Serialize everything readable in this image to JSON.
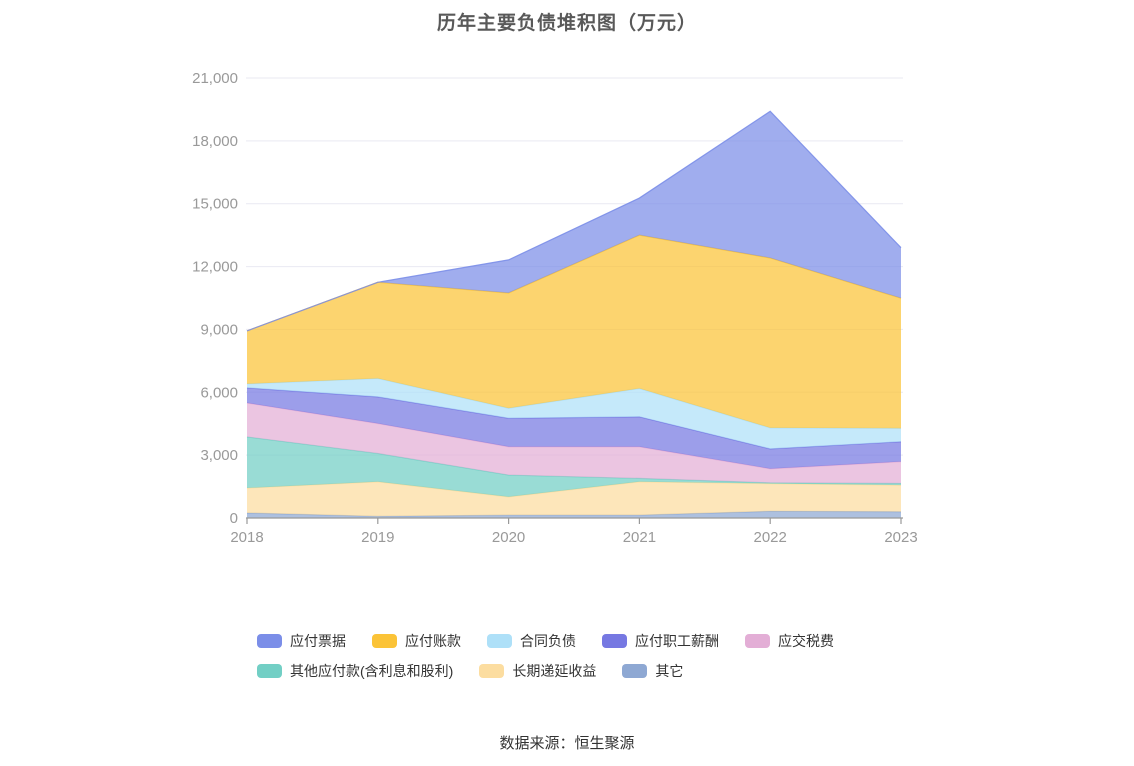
{
  "chart_data": {
    "type": "area",
    "title": "历年主要负债堆积图（万元）",
    "x": [
      "2018",
      "2019",
      "2020",
      "2021",
      "2022",
      "2023"
    ],
    "ylim": [
      0,
      21000
    ],
    "ytick_values": [
      0,
      3000,
      6000,
      9000,
      12000,
      15000,
      18000,
      21000
    ],
    "ytick_labels": [
      "0",
      "3,000",
      "6,000",
      "9,000",
      "12,000",
      "15,000",
      "18,000",
      "21,000"
    ],
    "grid": true,
    "legend_position": "bottom",
    "stacking": "series listed in legend order; drawn stacked bottom-to-top in reverse of this order",
    "fill_opacity": 0.72,
    "series": [
      {
        "id": "notes-payable",
        "name": "应付票据",
        "color": "#7b8ee8",
        "values": [
          0,
          0,
          1580,
          1770,
          7000,
          2410
        ]
      },
      {
        "id": "accounts-payable",
        "name": "应付账款",
        "color": "#fbc337",
        "values": [
          2530,
          4590,
          5500,
          7320,
          8110,
          6210
        ]
      },
      {
        "id": "contract-liabilities",
        "name": "合同负债",
        "color": "#aee0f8",
        "values": [
          190,
          880,
          480,
          1350,
          1000,
          640
        ]
      },
      {
        "id": "payroll-payable",
        "name": "应付职工薪酬",
        "color": "#7678e2",
        "values": [
          720,
          1270,
          1360,
          1430,
          950,
          950
        ]
      },
      {
        "id": "taxes-payable",
        "name": "应交税费",
        "color": "#e3aed6",
        "values": [
          1620,
          1430,
          1350,
          1510,
          670,
          1040
        ]
      },
      {
        "id": "other-payables",
        "name": "其他应付款(含利息和股利)",
        "color": "#72cfc5",
        "values": [
          2440,
          1350,
          1040,
          160,
          40,
          80
        ]
      },
      {
        "id": "deferred-income",
        "name": "长期递延收益",
        "color": "#fcdda0",
        "values": [
          1190,
          1650,
          870,
          1590,
          1320,
          1270
        ]
      },
      {
        "id": "other",
        "name": "其它",
        "color": "#8ea8d3",
        "values": [
          240,
          80,
          140,
          140,
          320,
          300
        ]
      }
    ],
    "legend_rows": [
      [
        0,
        1,
        2,
        3,
        4
      ],
      [
        5,
        6,
        7
      ]
    ]
  },
  "footer": {
    "source_text": "数据来源：恒生聚源"
  },
  "style": {
    "grid_color": "#e9e9f2",
    "axis_color": "#999999",
    "tick_label_color": "#999999",
    "title_color": "#595959",
    "legend_text_color": "#333333"
  }
}
